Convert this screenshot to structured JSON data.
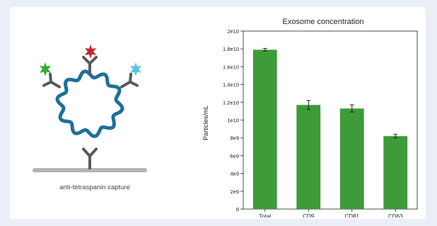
{
  "diagram": {
    "caption": "anti-tetraspanin capture",
    "colors": {
      "exosome_ring": "#1f6f9a",
      "antibody": "#555a60",
      "surface": "#b3b3b3",
      "dye_green": "#3aaa35",
      "dye_red": "#c0272d",
      "dye_blue": "#5bc3e6"
    }
  },
  "chart_data": {
    "type": "bar",
    "title": "Exosome concentration",
    "xlabel": "",
    "ylabel": "Particles/mL",
    "categories": [
      "Total",
      "CD9",
      "CD81",
      "CD63"
    ],
    "values": [
      17900000000.0,
      11700000000.0,
      11300000000.0,
      8200000000.0
    ],
    "errors": [
      150000000.0,
      500000000.0,
      400000000.0,
      200000000.0
    ],
    "ylim": [
      0,
      20000000000.0
    ],
    "yticks": [
      0,
      2000000000.0,
      4000000000.0,
      6000000000.0,
      8000000000.0,
      10000000000.0,
      12000000000.0,
      14000000000.0,
      16000000000.0,
      18000000000.0,
      20000000000.0
    ],
    "ytick_labels": [
      "0",
      "2e9",
      "4e9",
      "6e9",
      "8e9",
      "1e10",
      "1.2e10",
      "1.4e10",
      "1.6e10",
      "1.8e10",
      "2e10"
    ],
    "bar_color": "#3e9b3a",
    "grid": false,
    "legend": "none"
  }
}
